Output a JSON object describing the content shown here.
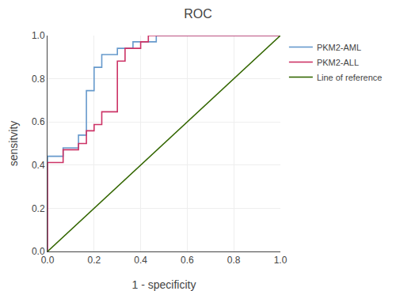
{
  "chart_data": {
    "type": "line",
    "title": "ROC",
    "xlabel": "1 - specificity",
    "ylabel": "sensitvity",
    "series": [
      {
        "name": "PKM2-AML",
        "color": "#6699CC",
        "x": [
          0.0,
          0.0,
          0.067,
          0.067,
          0.133,
          0.133,
          0.167,
          0.167,
          0.2,
          0.2,
          0.233,
          0.233,
          0.267,
          0.267,
          0.3,
          0.3,
          0.333,
          0.333,
          0.367,
          0.367,
          0.4,
          0.4,
          0.467,
          0.467,
          0.533,
          0.533,
          1.0
        ],
        "values": [
          0.0,
          0.441,
          0.441,
          0.48,
          0.48,
          0.539,
          0.539,
          0.745,
          0.745,
          0.853,
          0.853,
          0.912,
          0.912,
          0.912,
          0.912,
          0.941,
          0.941,
          0.941,
          0.941,
          0.971,
          0.971,
          0.971,
          0.971,
          1.0,
          1.0,
          1.0,
          1.0
        ]
      },
      {
        "name": "PKM2-ALL",
        "color": "#CC3366",
        "x": [
          0.0,
          0.0,
          0.067,
          0.067,
          0.133,
          0.133,
          0.167,
          0.167,
          0.2,
          0.2,
          0.233,
          0.233,
          0.267,
          0.267,
          0.3,
          0.3,
          0.333,
          0.333,
          0.4,
          0.4,
          0.433,
          0.433,
          1.0
        ],
        "values": [
          0.0,
          0.412,
          0.412,
          0.471,
          0.471,
          0.5,
          0.5,
          0.559,
          0.559,
          0.588,
          0.588,
          0.647,
          0.647,
          0.647,
          0.647,
          0.882,
          0.882,
          0.941,
          0.941,
          0.971,
          0.971,
          1.0,
          1.0
        ]
      },
      {
        "name": "Line of reference",
        "color": "#336600",
        "x": [
          0,
          1
        ],
        "values": [
          0,
          1
        ]
      }
    ],
    "xlim": [
      0.0,
      1.0
    ],
    "ylim": [
      0.0,
      1.0
    ],
    "xticks": [
      {
        "value": 0,
        "label": "0.0"
      },
      0.2,
      0.4,
      0.6,
      0.8,
      {
        "value": 1,
        "label": "1.0"
      }
    ],
    "yticks": [
      {
        "value": 0,
        "label": "0.0"
      },
      0.2,
      0.4,
      0.6,
      0.8,
      {
        "value": 1,
        "label": "1.0"
      }
    ],
    "grid": true,
    "legend": "right"
  }
}
